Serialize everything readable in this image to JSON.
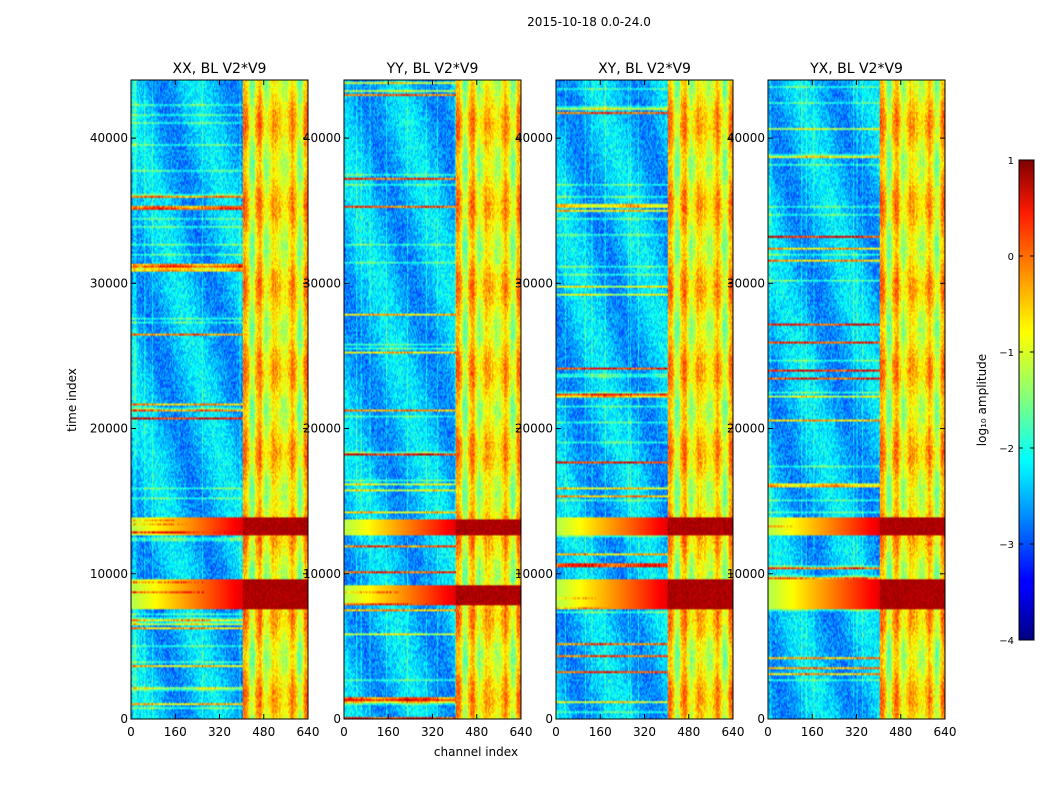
{
  "figure": {
    "suptitle": "2015-10-18 0.0-24.0",
    "shared_xlabel": "channel index",
    "shared_ylabel": "time index"
  },
  "chart_data": [
    {
      "type": "heatmap",
      "title": "XX, BL V2*V9",
      "xlabel": "channel index",
      "ylabel": "time index",
      "xlim": [
        0,
        640
      ],
      "ylim": [
        0,
        44000
      ],
      "xticks": [
        0,
        160,
        320,
        480,
        640
      ],
      "yticks": [
        0,
        10000,
        20000,
        30000,
        40000
      ],
      "colormap": "jet",
      "value_scale": "log10 amplitude",
      "rfi_channel_band": [
        405,
        640
      ],
      "strong_time_bands": [
        [
          7600,
          9600
        ],
        [
          12700,
          13900
        ]
      ]
    },
    {
      "type": "heatmap",
      "title": "YY, BL V2*V9",
      "xlabel": "channel index",
      "ylabel": "time index",
      "xlim": [
        0,
        640
      ],
      "ylim": [
        0,
        44000
      ],
      "xticks": [
        0,
        160,
        320,
        480,
        640
      ],
      "yticks": [
        0,
        10000,
        20000,
        30000,
        40000
      ],
      "colormap": "jet",
      "value_scale": "log10 amplitude",
      "rfi_channel_band": [
        405,
        640
      ],
      "strong_time_bands": [
        [
          7800,
          9200
        ],
        [
          12600,
          13800
        ]
      ]
    },
    {
      "type": "heatmap",
      "title": "XY, BL V2*V9",
      "xlabel": "channel index",
      "ylabel": "time index",
      "xlim": [
        0,
        640
      ],
      "ylim": [
        0,
        44000
      ],
      "xticks": [
        0,
        160,
        320,
        480,
        640
      ],
      "yticks": [
        0,
        10000,
        20000,
        30000,
        40000
      ],
      "colormap": "jet",
      "value_scale": "log10 amplitude",
      "rfi_channel_band": [
        405,
        640
      ],
      "strong_time_bands": [
        [
          7600,
          9600
        ],
        [
          12600,
          13900
        ]
      ]
    },
    {
      "type": "heatmap",
      "title": "YX, BL V2*V9",
      "xlabel": "channel index",
      "ylabel": "time index",
      "xlim": [
        0,
        640
      ],
      "ylim": [
        0,
        44000
      ],
      "xticks": [
        0,
        160,
        320,
        480,
        640
      ],
      "yticks": [
        0,
        10000,
        20000,
        30000,
        40000
      ],
      "colormap": "jet",
      "value_scale": "log10 amplitude",
      "rfi_channel_band": [
        405,
        640
      ],
      "strong_time_bands": [
        [
          7600,
          9600
        ],
        [
          12600,
          13900
        ]
      ]
    }
  ],
  "colorbar": {
    "label": "log₁₀ amplitude",
    "range": [
      -4,
      1
    ],
    "ticks": [
      1,
      0,
      -1,
      -2,
      -3,
      -4
    ],
    "tick_labels": [
      "1",
      "0",
      "−1",
      "−2",
      "−3",
      "−4"
    ],
    "colormap": "jet"
  }
}
